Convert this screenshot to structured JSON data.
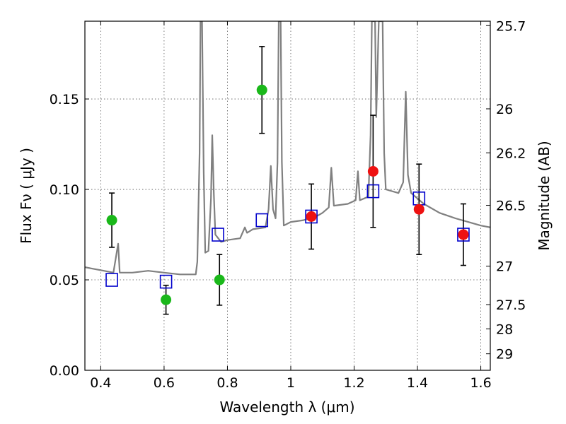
{
  "chart_data": {
    "type": "scatter",
    "xlabel": "Wavelength  λ (μm)",
    "ylabel": "Flux  Fν  ( μJy )",
    "ylabel_right": "Magnitude (AB)",
    "xlim": [
      0.35,
      1.63
    ],
    "ylim": [
      0.0,
      0.193
    ],
    "grid": true,
    "x_ticks": [
      0.4,
      0.6,
      0.8,
      1.0,
      1.2,
      1.4,
      1.6
    ],
    "x_tick_labels": [
      "0.4",
      "0.6",
      "0.8",
      "1",
      "1.2",
      "1.4",
      "1.6"
    ],
    "y_ticks": [
      0.0,
      0.05,
      0.1,
      0.15
    ],
    "y_tick_labels": [
      "0.00",
      "0.05",
      "0.10",
      "0.15"
    ],
    "right_ticks": [
      {
        "mag": 25.7,
        "label": "25.7"
      },
      {
        "mag": 26.0,
        "label": "26"
      },
      {
        "mag": 26.2,
        "label": "26.2"
      },
      {
        "mag": 26.5,
        "label": "26.5"
      },
      {
        "mag": 27.0,
        "label": "27"
      },
      {
        "mag": 27.5,
        "label": "27.5"
      },
      {
        "mag": 28.0,
        "label": "28"
      },
      {
        "mag": 29.0,
        "label": "29"
      }
    ],
    "colors": {
      "spectrum": "#808080",
      "green_points": "#1ab81a",
      "red_points": "#ee1111",
      "model_squares": "#0000cc",
      "errorbar": "#000000",
      "grid": "#555555"
    },
    "series": [
      {
        "marker": "circle",
        "color": "#1ab81a",
        "points": [
          {
            "x": 0.435,
            "y": 0.083,
            "yerr": 0.015
          },
          {
            "x": 0.606,
            "y": 0.039,
            "yerr": 0.008
          },
          {
            "x": 0.775,
            "y": 0.05,
            "yerr": 0.014
          },
          {
            "x": 0.909,
            "y": 0.155,
            "yerr": 0.024
          }
        ]
      },
      {
        "marker": "circle",
        "color": "#ee1111",
        "points": [
          {
            "x": 1.065,
            "y": 0.085,
            "yerr": 0.018
          },
          {
            "x": 1.26,
            "y": 0.11,
            "yerr": 0.031
          },
          {
            "x": 1.405,
            "y": 0.089,
            "yerr": 0.025
          },
          {
            "x": 1.545,
            "y": 0.075,
            "yerr": 0.017
          }
        ]
      },
      {
        "marker": "square",
        "color": "#0000cc",
        "points": [
          {
            "x": 0.435,
            "y": 0.05
          },
          {
            "x": 0.606,
            "y": 0.049
          },
          {
            "x": 0.77,
            "y": 0.075
          },
          {
            "x": 0.909,
            "y": 0.083
          },
          {
            "x": 1.065,
            "y": 0.085
          },
          {
            "x": 1.26,
            "y": 0.099
          },
          {
            "x": 1.405,
            "y": 0.095
          },
          {
            "x": 1.545,
            "y": 0.075
          }
        ]
      },
      {
        "marker": "line",
        "color": "#808080",
        "points": [
          [
            0.35,
            0.057
          ],
          [
            0.38,
            0.056
          ],
          [
            0.41,
            0.055
          ],
          [
            0.44,
            0.054
          ],
          [
            0.455,
            0.07
          ],
          [
            0.46,
            0.054
          ],
          [
            0.5,
            0.054
          ],
          [
            0.55,
            0.055
          ],
          [
            0.6,
            0.054
          ],
          [
            0.65,
            0.053
          ],
          [
            0.7,
            0.053
          ],
          [
            0.705,
            0.06
          ],
          [
            0.712,
            0.12
          ],
          [
            0.715,
            0.193
          ],
          [
            0.72,
            0.193
          ],
          [
            0.725,
            0.11
          ],
          [
            0.73,
            0.065
          ],
          [
            0.74,
            0.066
          ],
          [
            0.748,
            0.095
          ],
          [
            0.752,
            0.13
          ],
          [
            0.757,
            0.098
          ],
          [
            0.762,
            0.075
          ],
          [
            0.78,
            0.071
          ],
          [
            0.8,
            0.072
          ],
          [
            0.84,
            0.073
          ],
          [
            0.855,
            0.079
          ],
          [
            0.862,
            0.076
          ],
          [
            0.88,
            0.078
          ],
          [
            0.92,
            0.079
          ],
          [
            0.93,
            0.089
          ],
          [
            0.937,
            0.113
          ],
          [
            0.944,
            0.089
          ],
          [
            0.952,
            0.084
          ],
          [
            0.958,
            0.115
          ],
          [
            0.962,
            0.193
          ],
          [
            0.968,
            0.193
          ],
          [
            0.972,
            0.115
          ],
          [
            0.978,
            0.08
          ],
          [
            1.0,
            0.082
          ],
          [
            1.04,
            0.083
          ],
          [
            1.08,
            0.085
          ],
          [
            1.1,
            0.087
          ],
          [
            1.12,
            0.09
          ],
          [
            1.128,
            0.112
          ],
          [
            1.136,
            0.091
          ],
          [
            1.18,
            0.092
          ],
          [
            1.205,
            0.094
          ],
          [
            1.212,
            0.11
          ],
          [
            1.218,
            0.094
          ],
          [
            1.245,
            0.096
          ],
          [
            1.252,
            0.13
          ],
          [
            1.256,
            0.193
          ],
          [
            1.266,
            0.193
          ],
          [
            1.27,
            0.14
          ],
          [
            1.278,
            0.193
          ],
          [
            1.29,
            0.193
          ],
          [
            1.295,
            0.12
          ],
          [
            1.3,
            0.1
          ],
          [
            1.34,
            0.098
          ],
          [
            1.355,
            0.104
          ],
          [
            1.363,
            0.154
          ],
          [
            1.37,
            0.108
          ],
          [
            1.38,
            0.098
          ],
          [
            1.42,
            0.092
          ],
          [
            1.47,
            0.087
          ],
          [
            1.52,
            0.084
          ],
          [
            1.56,
            0.082
          ],
          [
            1.6,
            0.08
          ],
          [
            1.63,
            0.079
          ]
        ]
      }
    ]
  }
}
